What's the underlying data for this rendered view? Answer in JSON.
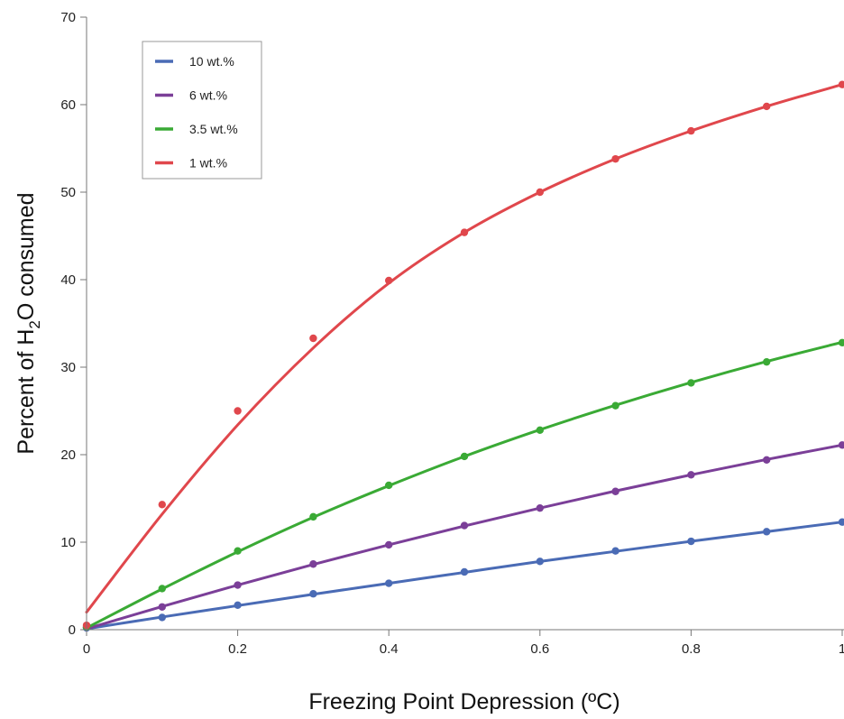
{
  "chart_data": {
    "type": "line",
    "xlabel": "Freezing Point Depression (ºC)",
    "ylabel_parts": [
      "Percent of H",
      "2",
      "O consumed"
    ],
    "xlim": [
      0,
      1
    ],
    "ylim": [
      0,
      70
    ],
    "x_ticks": [
      {
        "value": 0,
        "label": "0"
      },
      {
        "value": 0.2,
        "label": "0.2"
      },
      {
        "value": 0.4,
        "label": "0.4"
      },
      {
        "value": 0.6,
        "label": "0.6"
      },
      {
        "value": 0.8,
        "label": "0.8"
      },
      {
        "value": 1.0,
        "label": "1"
      }
    ],
    "y_ticks": [
      {
        "value": 0,
        "label": "0"
      },
      {
        "value": 10,
        "label": "10"
      },
      {
        "value": 20,
        "label": "20"
      },
      {
        "value": 30,
        "label": "30"
      },
      {
        "value": 40,
        "label": "40"
      },
      {
        "value": 50,
        "label": "50"
      },
      {
        "value": 60,
        "label": "60"
      },
      {
        "value": 70,
        "label": "70"
      }
    ],
    "grid": false,
    "legend_position": "top-left",
    "series": [
      {
        "name": "10 wt.%",
        "color": "#4a6bb5",
        "x": [
          0,
          0.1,
          0.2,
          0.3,
          0.4,
          0.5,
          0.6,
          0.7,
          0.8,
          0.9,
          1.0
        ],
        "y": [
          0.2,
          1.4,
          2.8,
          4.1,
          5.3,
          6.6,
          7.8,
          9.0,
          10.1,
          11.2,
          12.3
        ],
        "fit": [
          0.1,
          1.45,
          2.75,
          4.05,
          5.3,
          6.55,
          7.8,
          8.95,
          10.1,
          11.2,
          12.3
        ]
      },
      {
        "name": "6 wt.%",
        "color": "#7b3f98",
        "x": [
          0,
          0.1,
          0.2,
          0.3,
          0.4,
          0.5,
          0.6,
          0.7,
          0.8,
          0.9,
          1.0
        ],
        "y": [
          0.3,
          2.6,
          5.1,
          7.5,
          9.7,
          11.9,
          13.9,
          15.8,
          17.7,
          19.4,
          21.1
        ],
        "fit": [
          0.1,
          2.65,
          5.1,
          7.45,
          9.7,
          11.85,
          13.9,
          15.85,
          17.7,
          19.45,
          21.1
        ]
      },
      {
        "name": "3.5 wt.%",
        "color": "#3aaa35",
        "x": [
          0,
          0.1,
          0.2,
          0.3,
          0.4,
          0.5,
          0.6,
          0.7,
          0.8,
          0.9,
          1.0
        ],
        "y": [
          0.3,
          4.7,
          9.0,
          12.9,
          16.5,
          19.8,
          22.8,
          25.6,
          28.2,
          30.6,
          32.8
        ],
        "fit": [
          0.2,
          4.65,
          8.9,
          12.85,
          16.45,
          19.8,
          22.85,
          25.65,
          28.25,
          30.65,
          32.85
        ]
      },
      {
        "name": "1 wt.%",
        "color": "#e0474c",
        "x": [
          0,
          0.1,
          0.2,
          0.3,
          0.4,
          0.5,
          0.6,
          0.7,
          0.8,
          0.9,
          1.0
        ],
        "y": [
          0.5,
          14.3,
          25.0,
          33.3,
          39.9,
          45.4,
          50.0,
          53.8,
          57.0,
          59.8,
          62.3
        ],
        "fit": [
          2.0,
          13.2,
          23.4,
          32.2,
          39.6,
          45.4,
          50.0,
          53.8,
          57.0,
          59.8,
          62.3
        ]
      }
    ]
  }
}
